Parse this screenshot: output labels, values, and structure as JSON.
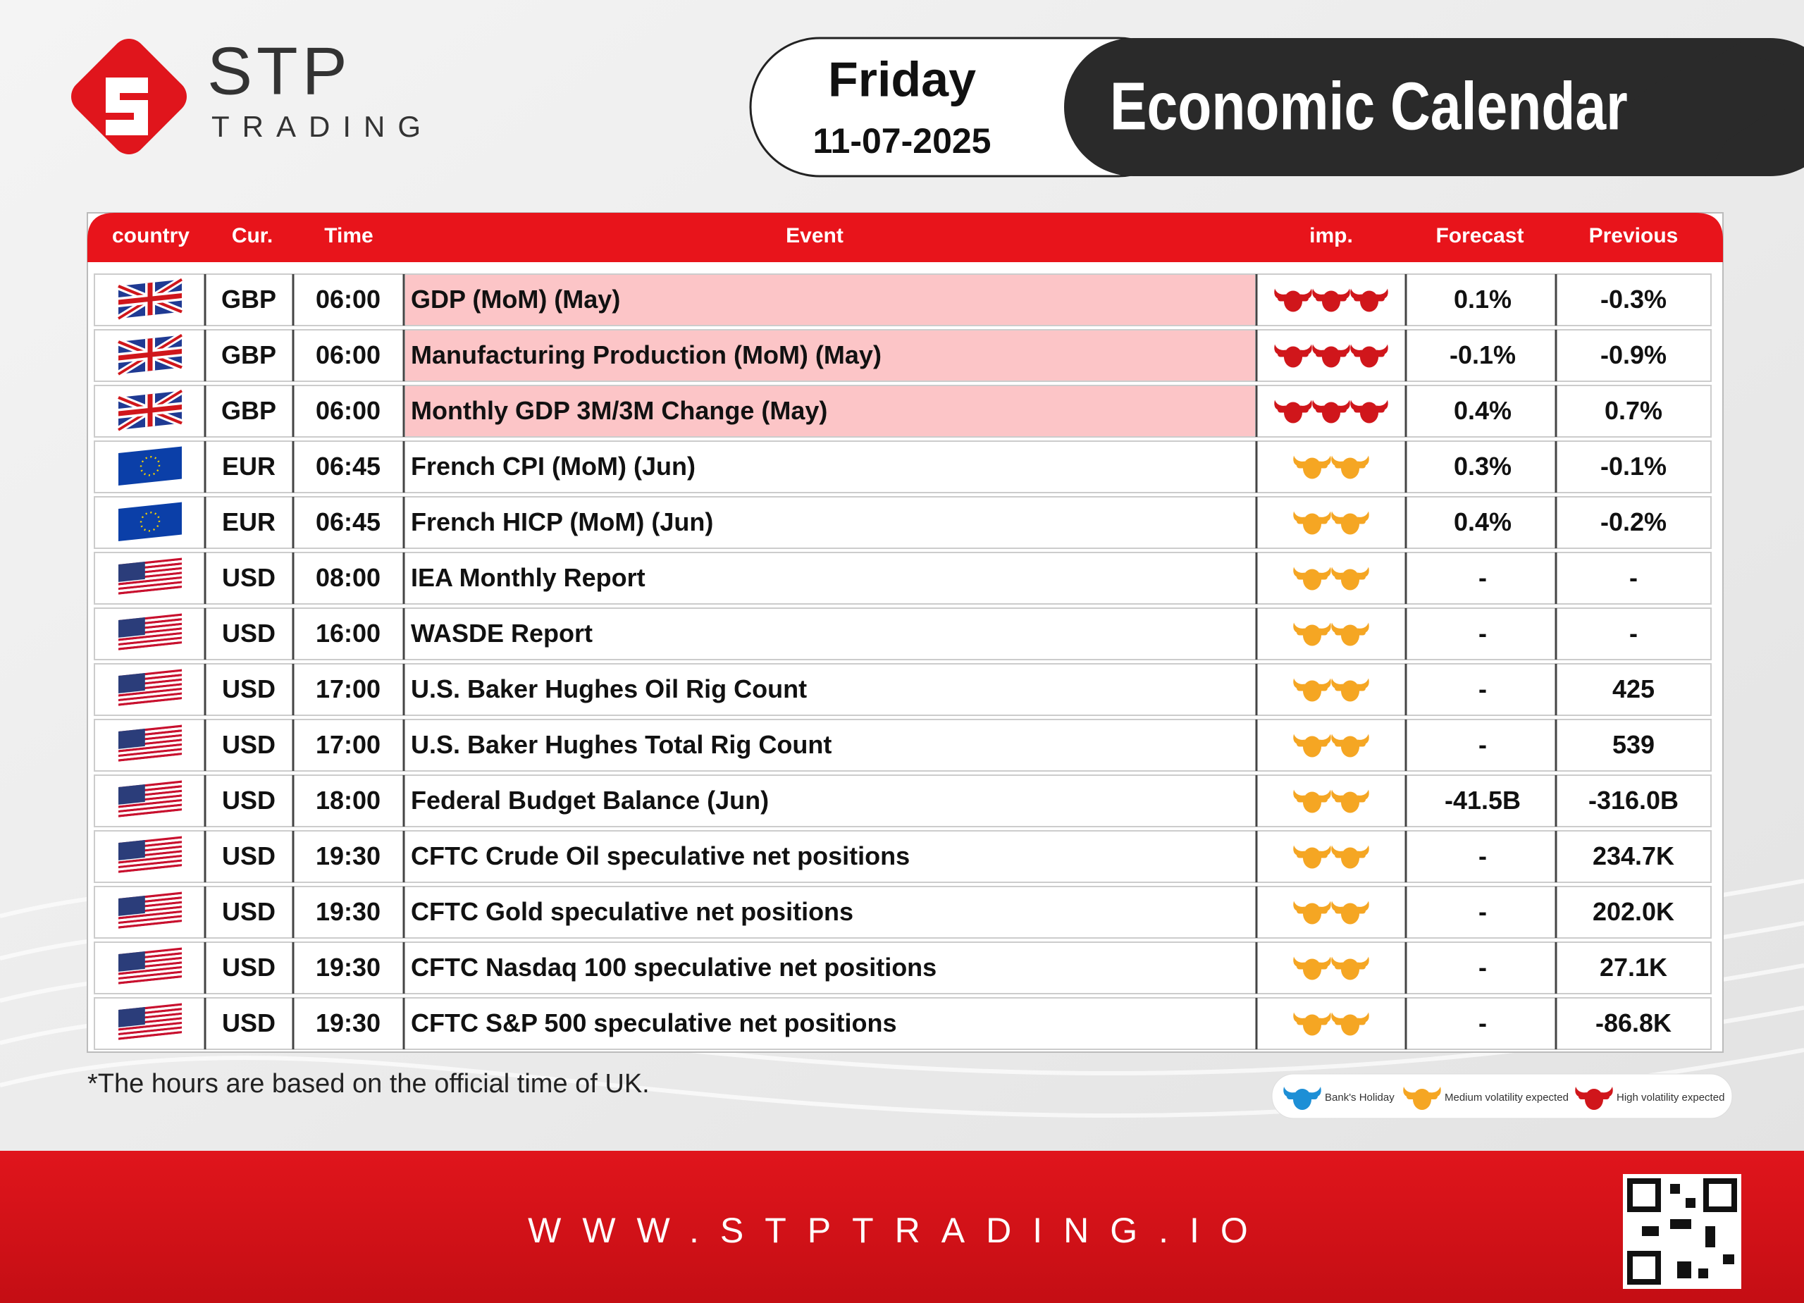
{
  "header": {
    "brand": "STP",
    "brand_sub": "TRADING",
    "day": "Friday",
    "date": "11-07-2025",
    "title": "Economic Calendar"
  },
  "table": {
    "columns": [
      "country",
      "Cur.",
      "Time",
      "Event",
      "imp.",
      "Forecast",
      "Previous"
    ],
    "rows": [
      {
        "flag": "uk",
        "currency": "GBP",
        "time": "06:00",
        "event": "GDP (MoM)  (May)",
        "imp": 3,
        "forecast": "0.1%",
        "previous": "-0.3%"
      },
      {
        "flag": "uk",
        "currency": "GBP",
        "time": "06:00",
        "event": "Manufacturing Production (MoM)  (May)",
        "imp": 3,
        "forecast": "-0.1%",
        "previous": "-0.9%"
      },
      {
        "flag": "uk",
        "currency": "GBP",
        "time": "06:00",
        "event": "Monthly GDP 3M/3M Change  (May)",
        "imp": 3,
        "forecast": "0.4%",
        "previous": "0.7%"
      },
      {
        "flag": "eu",
        "currency": "EUR",
        "time": "06:45",
        "event": "French CPI (MoM)  (Jun)",
        "imp": 2,
        "forecast": "0.3%",
        "previous": "-0.1%"
      },
      {
        "flag": "eu",
        "currency": "EUR",
        "time": "06:45",
        "event": "French HICP (MoM)  (Jun)",
        "imp": 2,
        "forecast": "0.4%",
        "previous": "-0.2%"
      },
      {
        "flag": "us",
        "currency": "USD",
        "time": "08:00",
        "event": "IEA Monthly Report",
        "imp": 2,
        "forecast": "-",
        "previous": "-"
      },
      {
        "flag": "us",
        "currency": "USD",
        "time": "16:00",
        "event": "WASDE Report",
        "imp": 2,
        "forecast": "-",
        "previous": "-"
      },
      {
        "flag": "us",
        "currency": "USD",
        "time": "17:00",
        "event": "U.S. Baker Hughes Oil Rig Count",
        "imp": 2,
        "forecast": "-",
        "previous": "425"
      },
      {
        "flag": "us",
        "currency": "USD",
        "time": "17:00",
        "event": "U.S. Baker Hughes Total Rig Count",
        "imp": 2,
        "forecast": "-",
        "previous": "539"
      },
      {
        "flag": "us",
        "currency": "USD",
        "time": "18:00",
        "event": "Federal Budget Balance  (Jun)",
        "imp": 2,
        "forecast": "-41.5B",
        "previous": "-316.0B"
      },
      {
        "flag": "us",
        "currency": "USD",
        "time": "19:30",
        "event": "CFTC Crude Oil speculative net positions",
        "imp": 2,
        "forecast": "-",
        "previous": "234.7K"
      },
      {
        "flag": "us",
        "currency": "USD",
        "time": "19:30",
        "event": "CFTC Gold speculative net positions",
        "imp": 2,
        "forecast": "-",
        "previous": "202.0K"
      },
      {
        "flag": "us",
        "currency": "USD",
        "time": "19:30",
        "event": "CFTC Nasdaq 100 speculative net positions",
        "imp": 2,
        "forecast": "-",
        "previous": "27.1K"
      },
      {
        "flag": "us",
        "currency": "USD",
        "time": "19:30",
        "event": "CFTC S&P 500 speculative net positions",
        "imp": 2,
        "forecast": "-",
        "previous": "-86.8K"
      }
    ]
  },
  "footnote": "*The hours are based on the official time of UK.",
  "legend": [
    {
      "label": "Bank's Holiday",
      "color": "#1d8fd6"
    },
    {
      "label": "Medium volatility expected",
      "color": "#f5a623"
    },
    {
      "label": "High volatility expected",
      "color": "#d0161b"
    }
  ],
  "footer": {
    "url": "WWW.STPTRADING.IO"
  }
}
